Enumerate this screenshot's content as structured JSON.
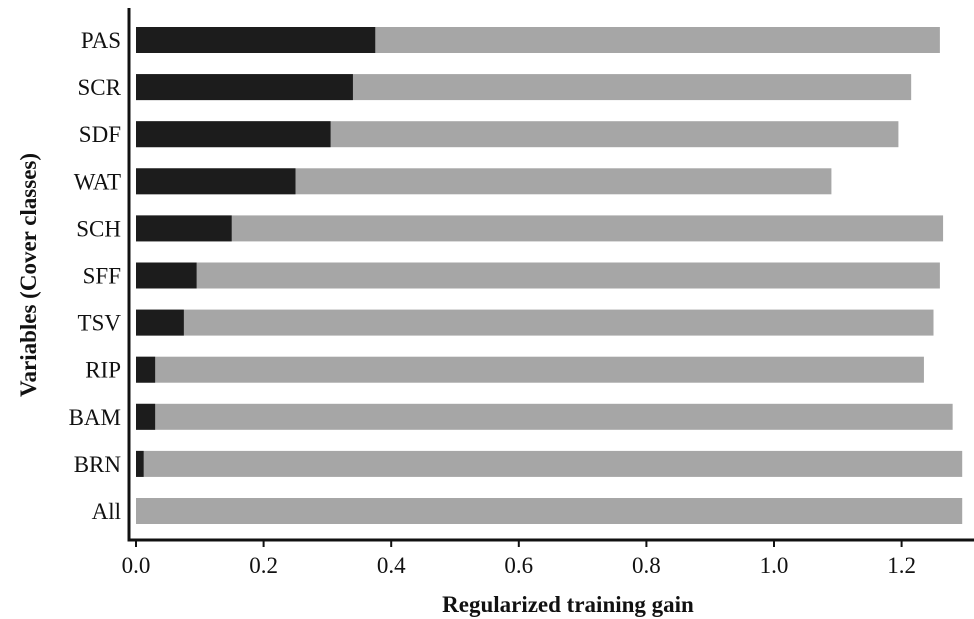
{
  "chart_data": {
    "type": "bar",
    "orientation": "horizontal",
    "xlabel": "Regularized training gain",
    "ylabel": "Variables (Cover classes)",
    "xlim": [
      0,
      1.3
    ],
    "xticks": [
      "0.0",
      "0.2",
      "0.4",
      "0.6",
      "0.8",
      "1.0",
      "1.2"
    ],
    "categories": [
      "PAS",
      "SCR",
      "SDF",
      "WAT",
      "SCH",
      "SFF",
      "TSV",
      "RIP",
      "BAM",
      "BRN",
      "All"
    ],
    "series": [
      {
        "values": [
          1.26,
          1.215,
          1.195,
          1.09,
          1.265,
          1.26,
          1.25,
          1.235,
          1.28,
          1.295,
          1.295
        ],
        "color": "#a6a6a6"
      },
      {
        "values": [
          0.375,
          0.34,
          0.305,
          0.25,
          0.15,
          0.095,
          0.075,
          0.03,
          0.03,
          0.012,
          0.0
        ],
        "color": "#1c1c1c"
      }
    ],
    "grid": false,
    "legend": "none"
  }
}
